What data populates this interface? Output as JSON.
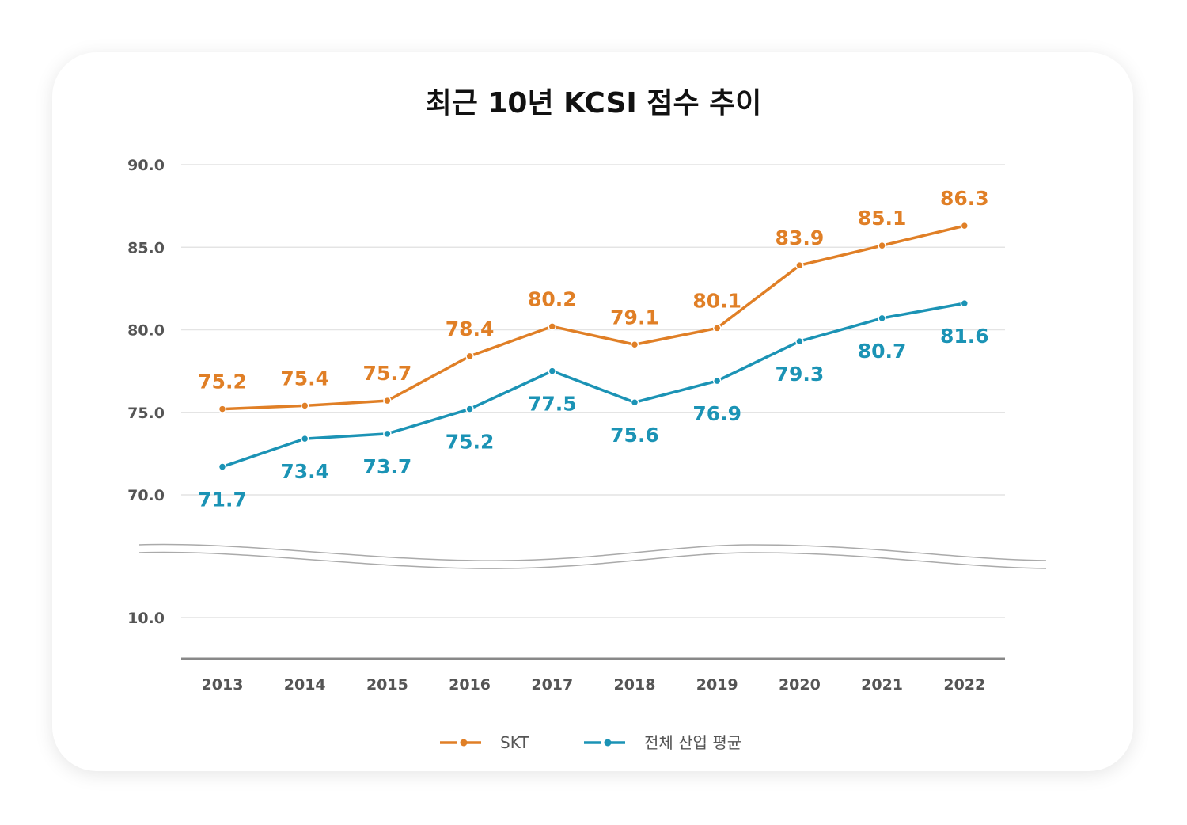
{
  "chart_data": {
    "type": "line",
    "title": "최근 10년 KCSI 점수 추이",
    "xlabel": "",
    "ylabel": "",
    "categories": [
      "2013",
      "2014",
      "2015",
      "2016",
      "2017",
      "2018",
      "2019",
      "2020",
      "2021",
      "2022"
    ],
    "y_ticks": [
      "90.0",
      "85.0",
      "80.0",
      "75.0",
      "70.0",
      "10.0"
    ],
    "ylim": [
      70,
      90
    ],
    "axis_break": true,
    "grid": true,
    "legend_position": "bottom",
    "series": [
      {
        "name": "SKT",
        "color": "#e07f26",
        "values": [
          75.2,
          75.4,
          75.7,
          78.4,
          80.2,
          79.1,
          80.1,
          83.9,
          85.1,
          86.3
        ],
        "labels": [
          "75.2",
          "75.4",
          "75.7",
          "78.4",
          "80.2",
          "79.1",
          "80.1",
          "83.9",
          "85.1",
          "86.3"
        ]
      },
      {
        "name": "전체 산업 평균",
        "color": "#1b93b5",
        "values": [
          71.7,
          73.4,
          73.7,
          75.2,
          77.5,
          75.6,
          76.9,
          79.3,
          80.7,
          81.6
        ],
        "labels": [
          "71.7",
          "73.4",
          "73.7",
          "75.2",
          "77.5",
          "75.6",
          "76.9",
          "79.3",
          "80.7",
          "81.6"
        ]
      }
    ]
  }
}
